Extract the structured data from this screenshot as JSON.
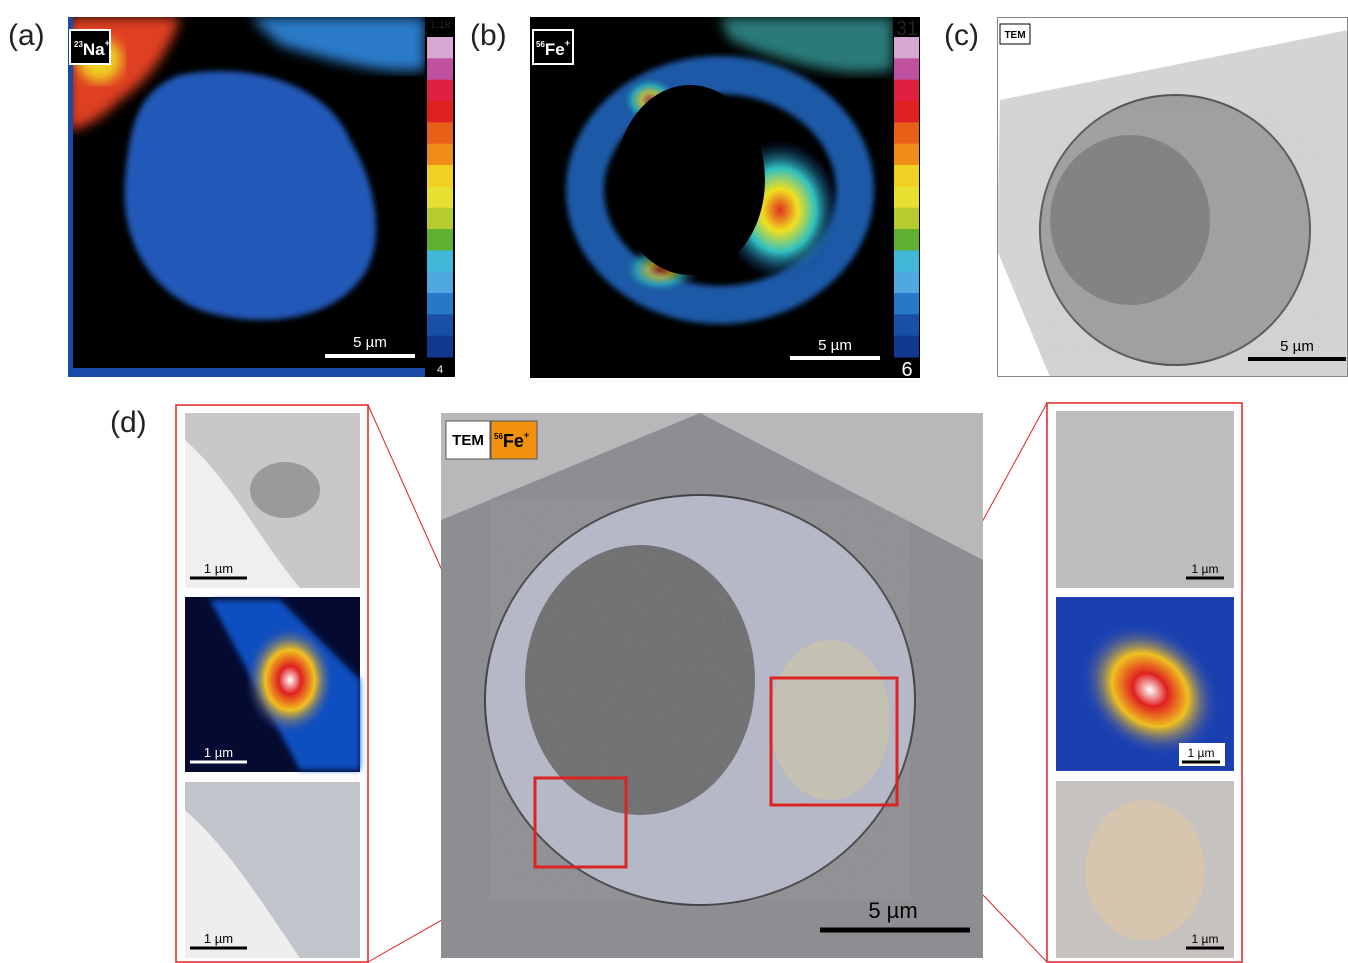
{
  "panels": [
    {
      "label": "(a)",
      "badge": {
        "isotope": "23",
        "element": "Na",
        "charge": "+"
      },
      "scale_bar": "5 µm",
      "colorbar": {
        "max": "1.1k",
        "min": "4"
      }
    },
    {
      "label": "(b)",
      "badge": {
        "isotope": "56",
        "element": "Fe",
        "charge": "+"
      },
      "scale_bar": "5 µm",
      "colorbar": {
        "max": "31",
        "min": "6"
      }
    },
    {
      "label": "(c)",
      "badge": "TEM",
      "scale_bar": "5 µm"
    },
    {
      "label": "(d)",
      "badge": {
        "tem": "TEM",
        "isotope": "56",
        "element": "Fe",
        "charge": "+"
      },
      "scale_bar": "5 µm",
      "left_insets": [
        "1 µm",
        "1 µm",
        "1 µm"
      ],
      "right_insets": [
        "1 µm",
        "1 µm",
        "1 µm"
      ]
    }
  ]
}
